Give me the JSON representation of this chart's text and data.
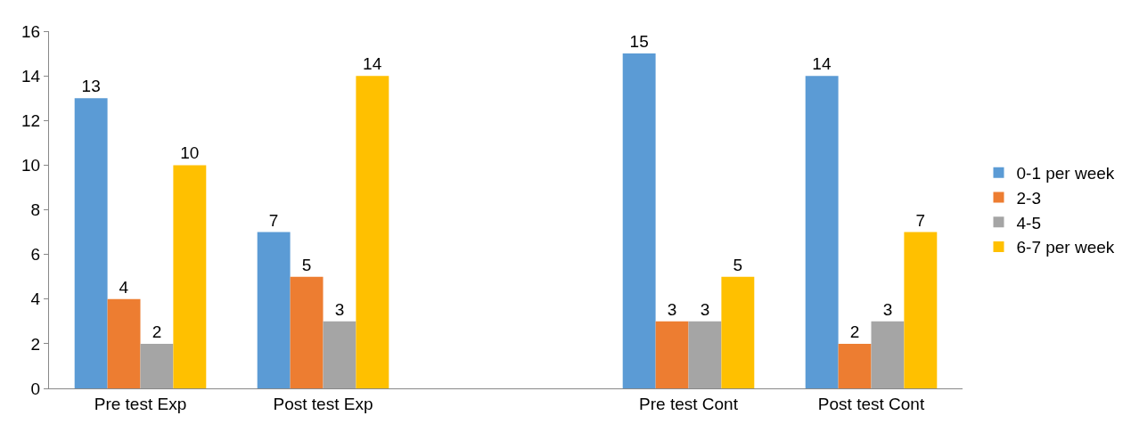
{
  "chart_data": {
    "type": "bar",
    "categories": [
      "Pre test Exp",
      "Post test Exp",
      null,
      "Pre test Cont",
      "Post test Cont"
    ],
    "series": [
      {
        "name": "0-1 per week",
        "color": "#5b9bd5",
        "values": [
          13,
          7,
          null,
          15,
          14
        ]
      },
      {
        "name": "2-3",
        "color": "#ed7d31",
        "values": [
          4,
          5,
          null,
          3,
          2
        ]
      },
      {
        "name": "4-5",
        "color": "#a5a5a5",
        "values": [
          2,
          3,
          null,
          3,
          3
        ]
      },
      {
        "name": "6-7 per week",
        "color": "#ffc000",
        "values": [
          10,
          14,
          null,
          5,
          7
        ]
      }
    ],
    "ylim": [
      0,
      16
    ],
    "yticks": [
      0,
      2,
      4,
      6,
      8,
      10,
      12,
      14,
      16
    ],
    "grid": false,
    "legend": "right",
    "data_labels": true
  }
}
